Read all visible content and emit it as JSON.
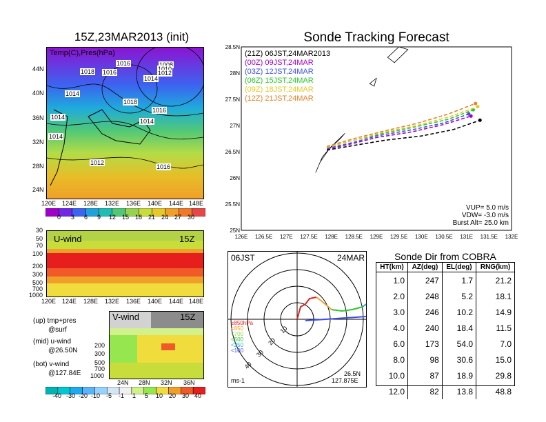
{
  "left": {
    "map_title": "15Z,23MAR2013 (init)",
    "map_overlay": "Temp(C),Pres(hPa)",
    "isobars": [
      "1016",
      "1018",
      "1016",
      "1008",
      "1010",
      "1012",
      "1014",
      "1014",
      "1018",
      "1016",
      "1014",
      "1014",
      "1014",
      "1012",
      "1016"
    ],
    "lat_labels": [
      "44N",
      "40N",
      "36N",
      "32N",
      "28N",
      "24N"
    ],
    "lon_labels": [
      "120E",
      "124E",
      "128E",
      "132E",
      "136E",
      "140E",
      "144E",
      "148E"
    ],
    "temp_scale": [
      "0",
      "3",
      "6",
      "9",
      "12",
      "15",
      "18",
      "21",
      "24",
      "27",
      "30"
    ],
    "temp_colors": [
      "#a000c8",
      "#6e28e6",
      "#3c64f0",
      "#1ea0dc",
      "#1ebeb4",
      "#50c878",
      "#96d250",
      "#c8dc3c",
      "#e6c828",
      "#f0a028",
      "#f07828",
      "#e64646"
    ],
    "uwind_title": "U-wind",
    "uwind_time": "15Z",
    "p_levels": [
      "30",
      "50",
      "70",
      "100",
      "200",
      "300",
      "500",
      "700",
      "1000"
    ],
    "vwind_title": "V-wind",
    "vwind_time": "15Z",
    "vwind_p_levels": [
      "200",
      "300",
      "500",
      "700",
      "1000"
    ],
    "vwind_lat_labels": [
      "24N",
      "28N",
      "32N",
      "36N"
    ],
    "legend_up": "(up) tmp+pres",
    "legend_up2": "@surf",
    "legend_mid": "(mid) u-wind",
    "legend_mid2": "@26.50N",
    "legend_bot": "(bot) v-wind",
    "legend_bot2": "@127.84E",
    "wind_scale": [
      "-40",
      "-30",
      "-20",
      "-10",
      "-5",
      "-1",
      "1",
      "5",
      "10",
      "20",
      "30",
      "40"
    ],
    "wind_colors": [
      "#00b4b4",
      "#00c8d2",
      "#1eaaf0",
      "#5ab4fa",
      "#96d2fa",
      "#d2e6f5",
      "#f0f0f0",
      "#d2f08c",
      "#96e650",
      "#f0dc3c",
      "#f0a028",
      "#f05a28",
      "#e61e1e"
    ]
  },
  "forecast": {
    "title": "Sonde Tracking Forecast",
    "legend": [
      {
        "code": "(21Z)",
        "time": "06JST,24MAR2013",
        "color": "#000000"
      },
      {
        "code": "(00Z)",
        "time": "09JST,24MAR",
        "color": "#a000c8"
      },
      {
        "code": "(03Z)",
        "time": "12JST,24MAR",
        "color": "#3c50e6"
      },
      {
        "code": "(06Z)",
        "time": "15JST,24MAR",
        "color": "#28c828"
      },
      {
        "code": "(09Z)",
        "time": "18JST,24MAR",
        "color": "#e6c828"
      },
      {
        "code": "(12Z)",
        "time": "21JST,24MAR",
        "color": "#e68228"
      }
    ],
    "params": [
      "VUP= 5.0 m/s",
      "VDW= -3.0 m/s",
      "Burst Alt= 25.0 km"
    ]
  },
  "polar": {
    "time": "06JST",
    "date": "24MAR",
    "pressure_labels": [
      "≥850hPa",
      "<850",
      "<700",
      "<500",
      "<250",
      "<100"
    ],
    "pressure_colors": [
      "#e61e1e",
      "#f0a028",
      "#96d250",
      "#28c828",
      "#1eaadc",
      "#3c50e6"
    ],
    "ring_labels": [
      "10",
      "20",
      "30",
      "40"
    ],
    "unit": "ms-1",
    "loc_lat": "26.5N",
    "loc_lon": "127.875E"
  },
  "table": {
    "title": "Sonde Dir from COBRA",
    "headers": [
      "HT(km)",
      "AZ(deg)",
      "EL(deg)",
      "RNG(km)"
    ],
    "rows": [
      [
        "1.0",
        "247",
        "1.7",
        "21.2"
      ],
      [
        "2.0",
        "248",
        "5.2",
        "18.1"
      ],
      [
        "3.0",
        "246",
        "10.2",
        "14.9"
      ],
      [
        "4.0",
        "240",
        "18.4",
        "11.5"
      ],
      [
        "6.0",
        "173",
        "54.0",
        "7.0"
      ],
      [
        "8.0",
        "98",
        "30.6",
        "15.0"
      ],
      [
        "10.0",
        "87",
        "18.9",
        "29.8"
      ],
      [
        "12.0",
        "82",
        "13.8",
        "48.8"
      ]
    ]
  },
  "chart_data": {
    "type": "line",
    "title": "Sonde Tracking Forecast",
    "xlim": [
      126,
      132
    ],
    "ylim": [
      25,
      28.5
    ],
    "x_ticks": [
      "126E",
      "126.5E",
      "127E",
      "127.5E",
      "128E",
      "128.5E",
      "129E",
      "129.5E",
      "130E",
      "130.5E",
      "131E",
      "131.5E",
      "132E"
    ],
    "y_ticks": [
      "25N",
      "25.5N",
      "26N",
      "26.5N",
      "27N",
      "27.5N",
      "28N",
      "28.5N"
    ],
    "series": [
      {
        "name": "(21Z) 06JST,24MAR2013",
        "color": "#000000",
        "x": [
          127.9,
          128.5,
          129.2,
          130.0,
          130.7,
          131.3
        ],
        "y": [
          26.53,
          26.62,
          26.72,
          26.8,
          26.92,
          27.1
        ]
      },
      {
        "name": "(00Z) 09JST,24MAR",
        "color": "#a000c8",
        "x": [
          127.9,
          128.5,
          129.0,
          129.8,
          130.5,
          131.1
        ],
        "y": [
          26.55,
          26.66,
          26.77,
          26.88,
          27.02,
          27.18
        ]
      },
      {
        "name": "(03Z) 12JST,24MAR",
        "color": "#3c50e6",
        "x": [
          127.9,
          128.5,
          129.0,
          129.8,
          130.5,
          131.05
        ],
        "y": [
          26.56,
          26.68,
          26.8,
          26.92,
          27.05,
          27.22
        ]
      },
      {
        "name": "(06Z) 15JST,24MAR",
        "color": "#28c828",
        "x": [
          127.9,
          128.5,
          129.1,
          129.9,
          130.6,
          131.15
        ],
        "y": [
          26.58,
          26.72,
          26.84,
          26.98,
          27.12,
          27.3
        ]
      },
      {
        "name": "(09Z) 18JST,24MAR",
        "color": "#e6c828",
        "x": [
          127.9,
          128.5,
          129.1,
          129.9,
          130.6,
          131.25
        ],
        "y": [
          26.58,
          26.72,
          26.86,
          27.0,
          27.16,
          27.36
        ]
      },
      {
        "name": "(12Z) 21JST,24MAR",
        "color": "#e68228",
        "x": [
          127.9,
          128.5,
          129.1,
          129.9,
          130.6,
          131.2
        ],
        "y": [
          26.6,
          26.75,
          26.88,
          27.04,
          27.22,
          27.42
        ]
      }
    ]
  }
}
